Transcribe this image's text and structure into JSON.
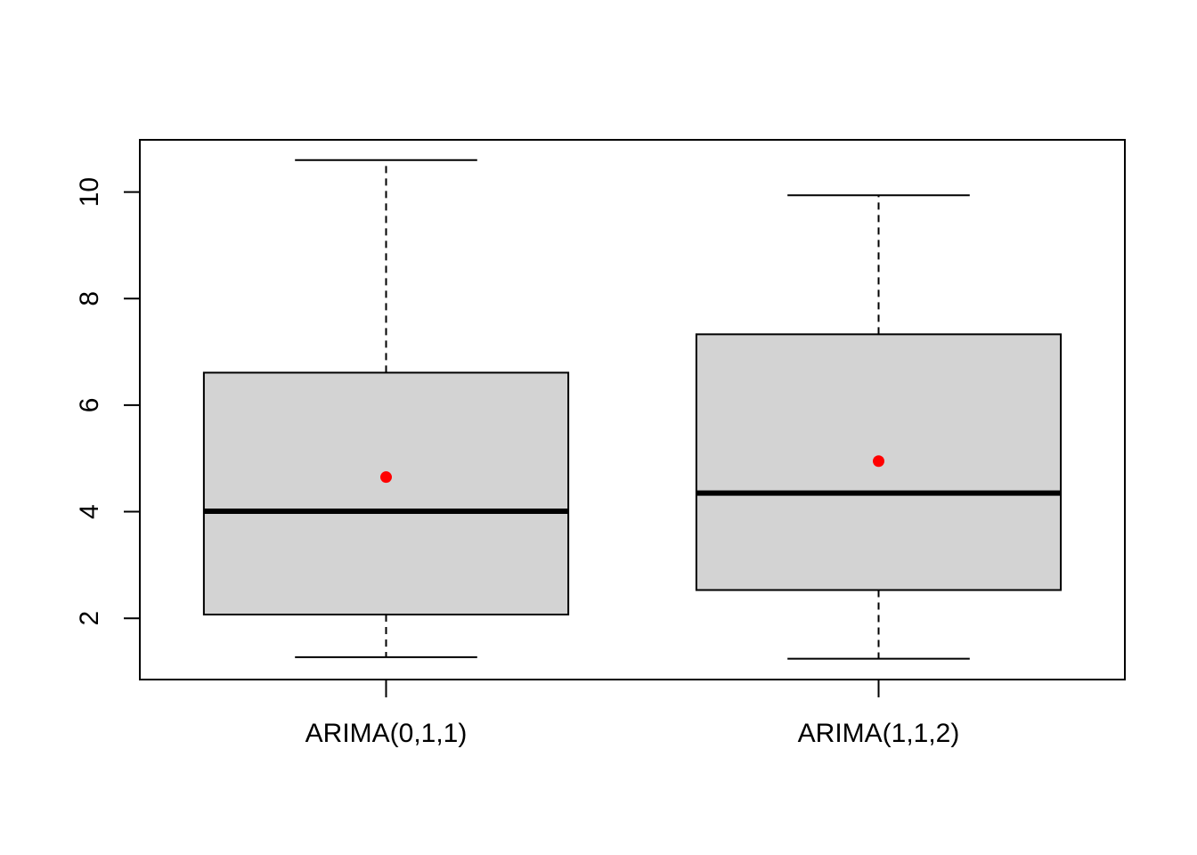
{
  "chart_data": {
    "type": "boxplot",
    "categories": [
      "ARIMA(0,1,1)",
      "ARIMA(1,1,2)"
    ],
    "boxes": [
      {
        "category": "ARIMA(0,1,1)",
        "whisker_low": 1.27,
        "q1": 2.07,
        "median": 4.01,
        "q3": 6.61,
        "whisker_high": 10.6,
        "mean": 4.65
      },
      {
        "category": "ARIMA(1,1,2)",
        "whisker_low": 1.24,
        "q1": 2.53,
        "median": 4.35,
        "q3": 7.33,
        "whisker_high": 9.94,
        "mean": 4.95
      }
    ],
    "yticks": [
      2,
      4,
      6,
      8,
      10
    ],
    "ylim": [
      0.85,
      10.98
    ],
    "title": "",
    "xlabel": "",
    "ylabel": "",
    "grid": false,
    "colors": {
      "box_fill": "#d3d3d3",
      "mean_point": "#ff0000",
      "line": "#000000"
    }
  }
}
